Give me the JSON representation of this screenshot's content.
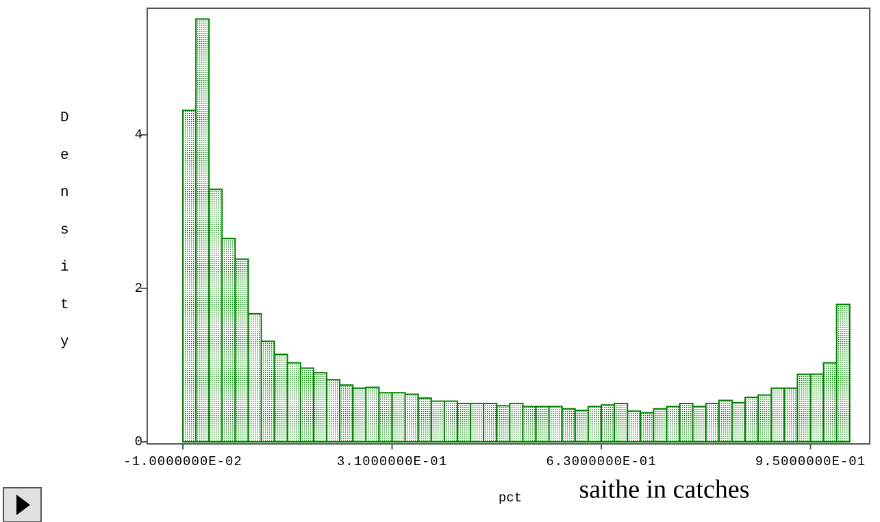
{
  "chart_data": {
    "type": "histogram",
    "title": "saithe in catches",
    "xlabel": "pct",
    "ylabel": "Density",
    "color": "#008000",
    "bins": [
      -0.01,
      0.01,
      0.03,
      0.05,
      0.07,
      0.09,
      0.11,
      0.13,
      0.15,
      0.17,
      0.19,
      0.21,
      0.23,
      0.25,
      0.27,
      0.29,
      0.31,
      0.33,
      0.35,
      0.37,
      0.39,
      0.41,
      0.43,
      0.45,
      0.47,
      0.49,
      0.51,
      0.53,
      0.55,
      0.57,
      0.59,
      0.61,
      0.63,
      0.65,
      0.67,
      0.69,
      0.71,
      0.73,
      0.75,
      0.77,
      0.79,
      0.81,
      0.83,
      0.85,
      0.87,
      0.89,
      0.91,
      0.93,
      0.95,
      0.97,
      0.99,
      1.01
    ],
    "values": [
      4.32,
      5.51,
      3.29,
      2.65,
      2.38,
      1.67,
      1.31,
      1.14,
      1.03,
      0.96,
      0.9,
      0.81,
      0.74,
      0.7,
      0.71,
      0.64,
      0.64,
      0.62,
      0.57,
      0.53,
      0.53,
      0.5,
      0.5,
      0.5,
      0.47,
      0.5,
      0.46,
      0.46,
      0.46,
      0.43,
      0.41,
      0.46,
      0.48,
      0.5,
      0.4,
      0.38,
      0.43,
      0.46,
      0.5,
      0.46,
      0.5,
      0.54,
      0.51,
      0.58,
      0.61,
      0.7,
      0.7,
      0.88,
      0.88,
      1.03,
      1.79
    ],
    "xlim": [
      -0.0645,
      1.0406
    ],
    "ylim": [
      0,
      5.65
    ],
    "xticks": [
      {
        "value": -0.01,
        "label": "-1.0000000E-02"
      },
      {
        "value": 0.31,
        "label": "3.1000000E-01"
      },
      {
        "value": 0.63,
        "label": "6.3000000E-01"
      },
      {
        "value": 0.95,
        "label": "9.5000000E-01"
      }
    ],
    "yticks": [
      0,
      2,
      4
    ]
  }
}
